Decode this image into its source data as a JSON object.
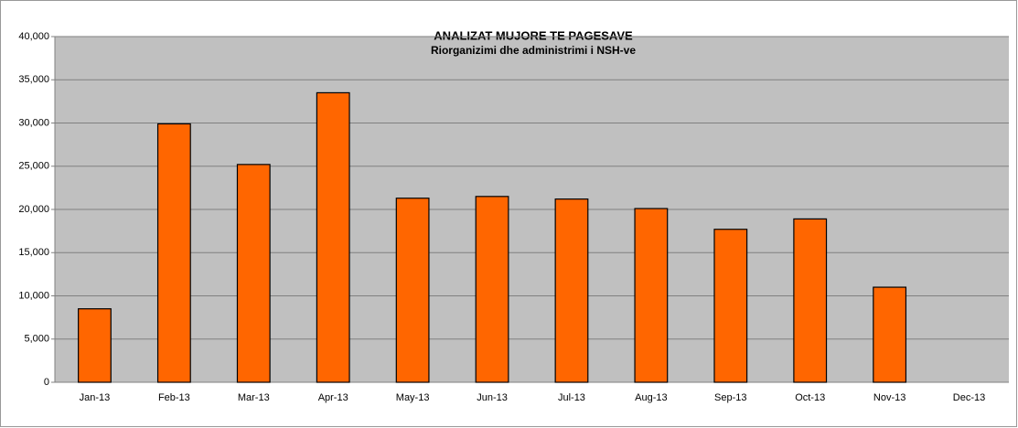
{
  "chart_data": {
    "type": "bar",
    "title": "ANALIZAT MUJORE TE PAGESAVE",
    "subtitle": "Riorganizimi dhe administrimi i NSH-ve",
    "categories": [
      "Jan-13",
      "Feb-13",
      "Mar-13",
      "Apr-13",
      "May-13",
      "Jun-13",
      "Jul-13",
      "Aug-13",
      "Sep-13",
      "Oct-13",
      "Nov-13",
      "Dec-13"
    ],
    "values": [
      8500,
      29900,
      25200,
      33500,
      21300,
      21500,
      21200,
      20100,
      17700,
      18900,
      11000,
      null
    ],
    "color": "#ff6600",
    "ylim": [
      0,
      40000
    ],
    "yticks": [
      0,
      {
        "value": 5000,
        "label": "5,000"
      },
      {
        "value": 10000,
        "label": "10,000"
      },
      {
        "value": 15000,
        "label": "15,000"
      },
      {
        "value": 20000,
        "label": "20,000"
      },
      {
        "value": 25000,
        "label": "25,000"
      },
      {
        "value": 30000,
        "label": "30,000"
      },
      {
        "value": 35000,
        "label": "35,000"
      },
      {
        "value": 40000,
        "label": "40,000"
      }
    ],
    "grid": true
  }
}
